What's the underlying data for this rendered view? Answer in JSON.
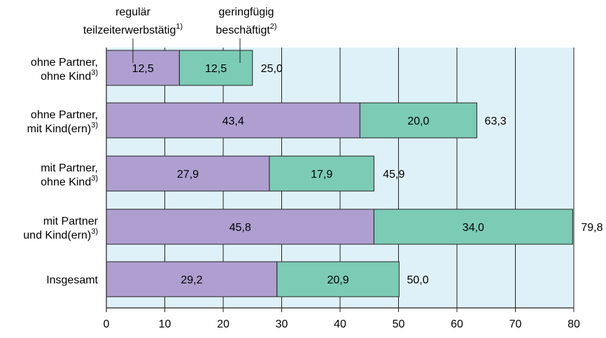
{
  "chart_data": {
    "type": "bar",
    "orientation": "horizontal",
    "stacked": true,
    "categories": [
      [
        "ohne Partner,",
        "ohne Kind",
        "3)"
      ],
      [
        "ohne Partner,",
        "mit Kind(ern)",
        "3)"
      ],
      [
        "mit Partner,",
        "ohne Kind",
        "3)"
      ],
      [
        "mit Partner",
        "und Kind(ern)",
        "3)"
      ],
      [
        "Insgesamt"
      ]
    ],
    "series": [
      {
        "name_lines": [
          "regulär",
          "teilzeiterwerbstätig"
        ],
        "name_sup": "1)",
        "values": [
          12.5,
          43.4,
          27.9,
          45.8,
          29.2
        ],
        "labels": [
          "12,5",
          "43,4",
          "27,9",
          "45,8",
          "29,2"
        ],
        "color": "#ae9fd0"
      },
      {
        "name_lines": [
          "geringfügig",
          "beschäftigt"
        ],
        "name_sup": "2)",
        "values": [
          12.5,
          20.0,
          17.9,
          34.0,
          20.9
        ],
        "labels": [
          "12,5",
          "20,0",
          "17,9",
          "34,0",
          "20,9"
        ],
        "color": "#7ccbb5"
      }
    ],
    "totals": [
      25.0,
      63.3,
      45.9,
      79.8,
      50.0
    ],
    "total_labels": [
      "25,0",
      "63,3",
      "45,9",
      "79,8",
      "50,0"
    ],
    "xlim": [
      0,
      80
    ],
    "xticks": [
      0,
      10,
      20,
      30,
      40,
      50,
      60,
      70,
      80
    ],
    "grid": true,
    "plot_background": "#dff1f8",
    "grid_color": "#222222"
  }
}
